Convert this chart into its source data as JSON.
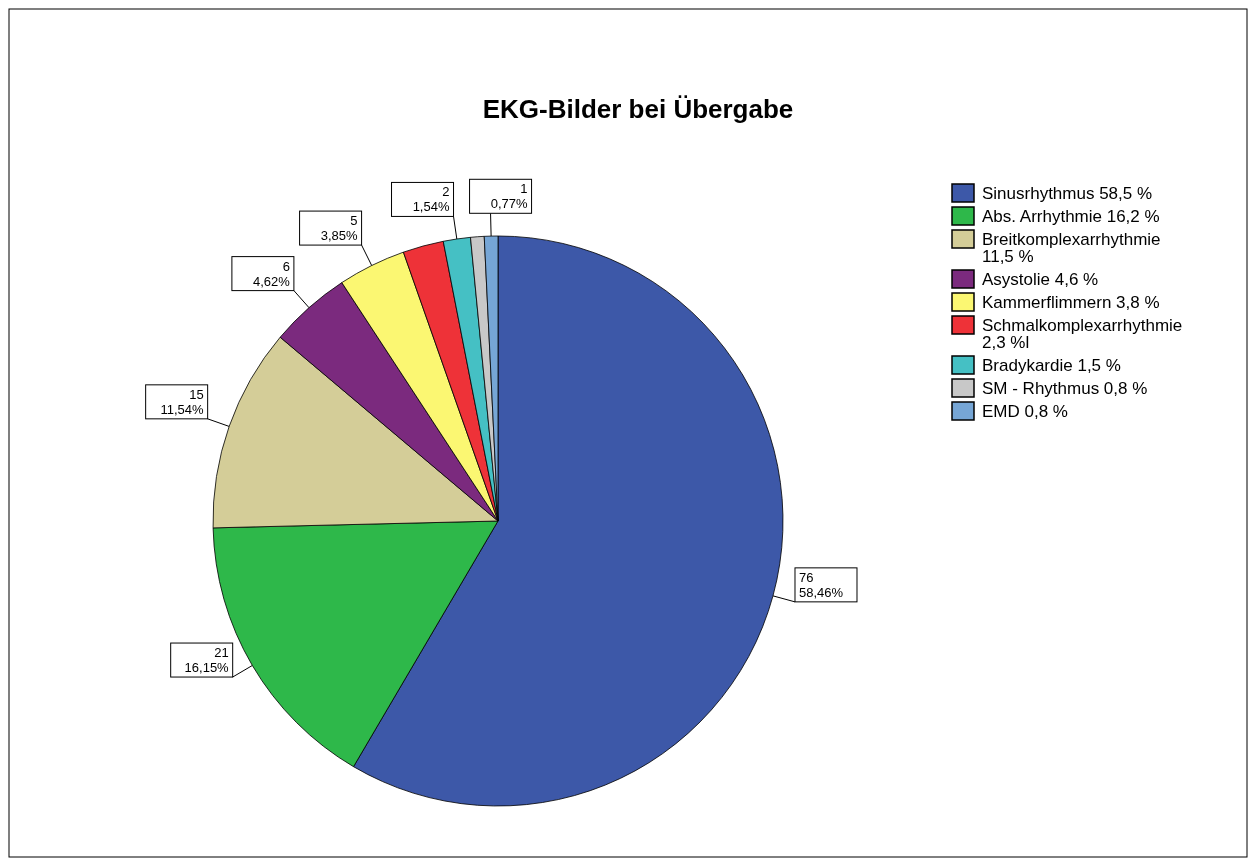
{
  "chart_data": {
    "type": "pie",
    "title": "EKG-Bilder bei Übergabe",
    "categories": [
      "Sinusrhythmus 58,5 %",
      "Abs. Arrhythmie 16,2 %",
      "Breitkomplexarrhythmie 11,5 %",
      "Asystolie 4,6 %",
      "Kammerflimmern 3,8 %",
      "Schmalkomplexarrhythmie 2,3 %l",
      "Bradykardie 1,5 %",
      "SM - Rhythmus 0,8 %",
      "EMD 0,8 %"
    ],
    "values": [
      76,
      21,
      15,
      6,
      5,
      3,
      2,
      1,
      1
    ],
    "colors": [
      "#3d58a8",
      "#2eb84a",
      "#d4cd98",
      "#7b2a7e",
      "#fbf772",
      "#ee3238",
      "#45c0c4",
      "#c8c8c8",
      "#76a6d6"
    ],
    "value_labels": [
      "76\n58,46%",
      "21\n16,15%",
      "15\n11,54%",
      "6\n4,62%",
      "5\n3,85%",
      null,
      "2\n1,54%",
      null,
      "1\n0,77%"
    ],
    "legend": "right"
  }
}
